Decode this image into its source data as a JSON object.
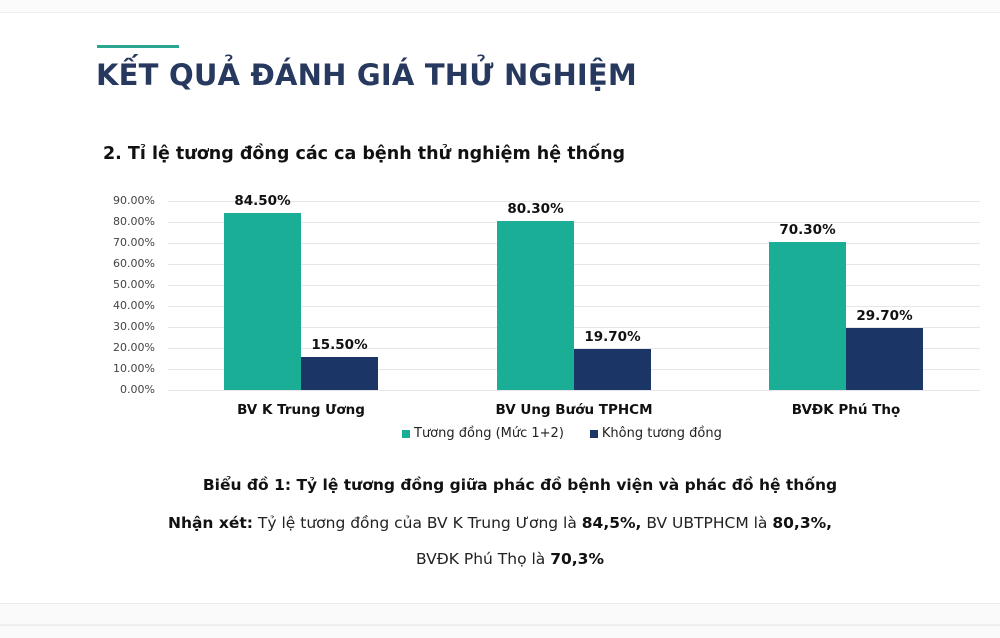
{
  "slide": {
    "title": "KẾT QUẢ ĐÁNH GIÁ THỬ NGHIỆM",
    "subtitle": "2. Tỉ lệ tương đồng các ca bệnh thử nghiệm hệ thống",
    "accent_color": "#2aa58f",
    "title_color": "#27395f"
  },
  "chart_data": {
    "type": "bar",
    "title": "Biểu đồ 1: Tỷ lệ tương đồng giữa phác đồ bệnh viện và phác đồ hệ thống",
    "xlabel": "",
    "ylabel": "",
    "ylim": [
      0,
      90
    ],
    "yticks": [
      "0.00%",
      "10.00%",
      "20.00%",
      "30.00%",
      "40.00%",
      "50.00%",
      "60.00%",
      "70.00%",
      "80.00%",
      "90.00%"
    ],
    "grid": true,
    "legend_position": "bottom",
    "categories": [
      "BV K Trung Ương",
      "BV Ung Bướu TPHCM",
      "BVĐK Phú Thọ"
    ],
    "series": [
      {
        "name": "Tương đồng (Mức 1+2)",
        "color": "#1aae96",
        "values": [
          84.5,
          80.3,
          70.3
        ],
        "labels": [
          "84.50%",
          "80.30%",
          "70.30%"
        ]
      },
      {
        "name": "Không tương đồng",
        "color": "#1b3567",
        "values": [
          15.5,
          19.7,
          29.7
        ],
        "labels": [
          "15.50%",
          "19.70%",
          "29.70%"
        ]
      }
    ]
  },
  "caption": "Biểu đồ 1: Tỷ lệ tương đồng giữa phác đồ bệnh viện và phác đồ hệ thống",
  "remark": {
    "label": "Nhận xét:",
    "part1": " Tỷ lệ tương đồng của BV K Trung Ương là ",
    "value1": "84,5%,",
    "part2": " BV UBTPHCM là ",
    "value2": "80,3%,",
    "part3": "BVĐK Phú Thọ là ",
    "value3": "70,3%"
  }
}
